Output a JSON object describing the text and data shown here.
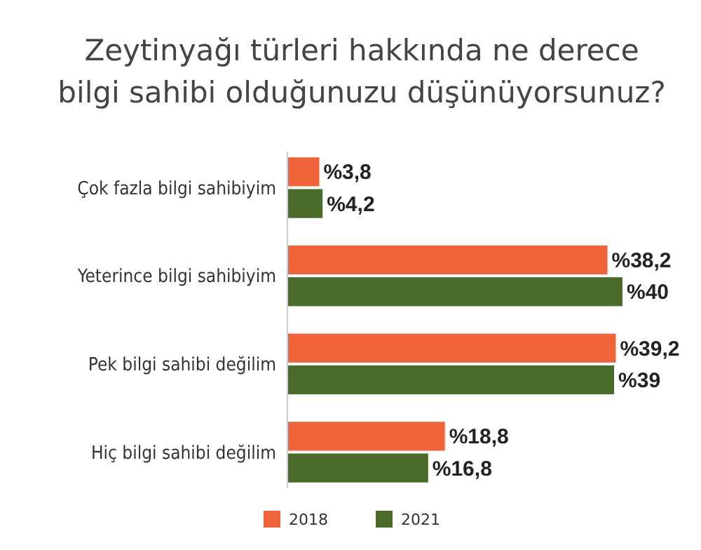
{
  "chart_data": {
    "type": "bar",
    "orientation": "horizontal",
    "title": "Zeytinyağı türleri hakkında ne derece\nbilgi sahibi olduğunuzu düşünüyorsunuz?",
    "categories": [
      "Çok fazla bilgi sahibiyim",
      "Yeterince bilgi sahibiyim",
      "Pek bilgi sahibi değilim",
      "Hiç bilgi sahibi değilim"
    ],
    "series": [
      {
        "name": "2018",
        "color": "#f0643c",
        "values": [
          3.8,
          38.2,
          39.2,
          18.8
        ],
        "value_labels": [
          "%3,8",
          "%38,2",
          "%39,2",
          "%18,8"
        ]
      },
      {
        "name": "2021",
        "color": "#4a6b2a",
        "values": [
          4.2,
          40,
          39,
          16.8
        ],
        "value_labels": [
          "%4,2",
          "%40",
          "%39",
          "%16,8"
        ]
      }
    ],
    "legend": "bottom"
  }
}
